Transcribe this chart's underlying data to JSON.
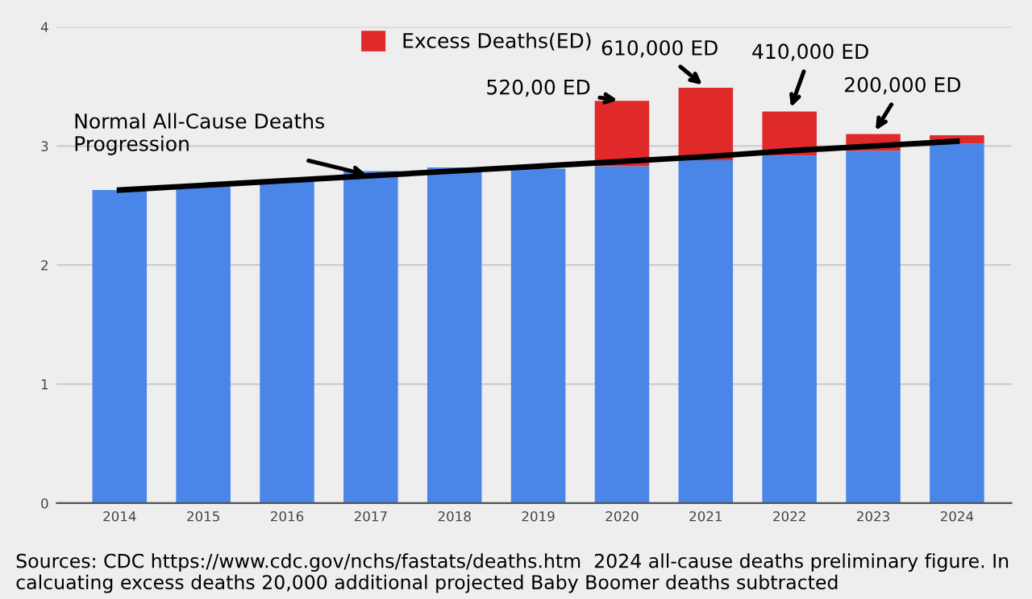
{
  "chart_data": {
    "type": "bar",
    "stacked": true,
    "categories": [
      "2014",
      "2015",
      "2016",
      "2017",
      "2018",
      "2019",
      "2020",
      "2021",
      "2022",
      "2023",
      "2024"
    ],
    "series": [
      {
        "color": "#4a86e8",
        "values": [
          2.63,
          2.66,
          2.71,
          2.79,
          2.82,
          2.81,
          2.83,
          2.88,
          2.92,
          2.96,
          3.02
        ]
      },
      {
        "name": "Excess Deaths(ED)",
        "color": "#e02a2a",
        "values": [
          null,
          null,
          null,
          null,
          null,
          null,
          0.55,
          0.61,
          0.37,
          0.14,
          0.07
        ]
      },
      {
        "type": "line",
        "color": "#000000",
        "values": [
          2.63,
          2.67,
          2.71,
          2.75,
          2.79,
          2.83,
          2.87,
          2.91,
          2.96,
          3.0,
          3.04
        ]
      }
    ],
    "ylim": [
      0,
      4
    ],
    "yticks": [
      0,
      1,
      2,
      3,
      4
    ],
    "grid": "y",
    "legend": "top",
    "annotations": [
      {
        "text": "Normal All-Cause Deaths\nProgression",
        "x": "2017",
        "y": 2.75
      },
      {
        "text": "520,00 ED",
        "x": "2020",
        "y": 3.38
      },
      {
        "text": "610,000 ED",
        "x": "2021",
        "y": 3.49
      },
      {
        "text": "410,000 ED",
        "x": "2022",
        "y": 3.29
      },
      {
        "text": "200,000 ED",
        "x": "2023",
        "y": 3.1
      },
      "Sources: CDC https://www.cdc.gov/nchs/fastats/deaths.htm  2024 all-cause deaths preliminary figure. In calcuating excess deaths 20,000 additional projected Baby Boomer deaths subtracted"
    ]
  }
}
